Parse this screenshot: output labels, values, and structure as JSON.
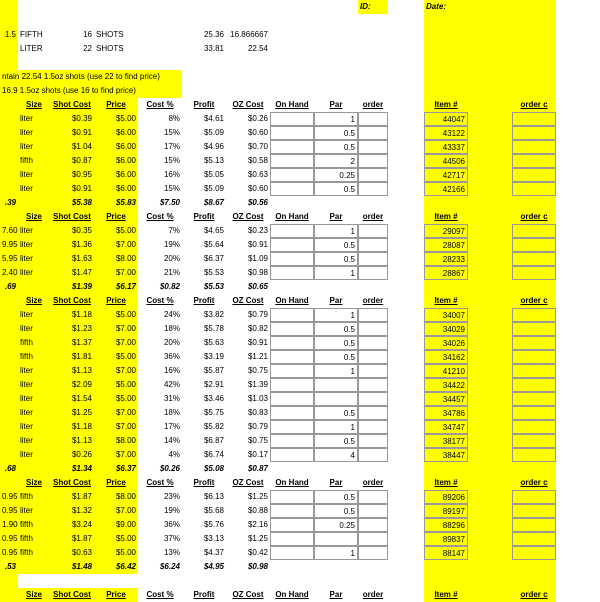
{
  "topLabels": {
    "id": "ID:",
    "date": "Date:"
  },
  "topRows": [
    {
      "a": "1.5",
      "b": "FIFTH",
      "c": "16",
      "d": "SHOTS",
      "e": "25.36",
      "f": "16.866667"
    },
    {
      "a": "",
      "b": "LITER",
      "c": "22",
      "d": "SHOTS",
      "e": "33.81",
      "f": "22.54"
    }
  ],
  "notes": [
    "ntain 22.54 1.5oz shots (use 22 to find price)",
    "16.9 1.5oz shots (use 16 to find price)"
  ],
  "headers": {
    "size": "Size",
    "shotCost": "Shot Cost",
    "price": "Price",
    "costPct": "Cost %",
    "profit": "Profit",
    "ozCost": "OZ Cost",
    "onHand": "On Hand",
    "par": "Par",
    "order": "order",
    "item": "Item #",
    "orderC": "order c"
  },
  "sections": [
    {
      "rows": [
        {
          "size": "liter",
          "shot": "$0.39",
          "price": "$5.00",
          "pct": "8%",
          "profit": "$4.61",
          "oz": "$0.26",
          "hand": "",
          "par": "1",
          "item": "44047"
        },
        {
          "size": "liter",
          "shot": "$0.91",
          "price": "$6.00",
          "pct": "15%",
          "profit": "$5.09",
          "oz": "$0.60",
          "hand": "",
          "par": "0.5",
          "item": "43122"
        },
        {
          "size": "liter",
          "shot": "$1.04",
          "price": "$6.00",
          "pct": "17%",
          "profit": "$4.96",
          "oz": "$0.70",
          "hand": "",
          "par": "0.5",
          "item": "43337"
        },
        {
          "size": "fifth",
          "shot": "$0.87",
          "price": "$6.00",
          "pct": "15%",
          "profit": "$5.13",
          "oz": "$0.58",
          "hand": "",
          "par": "2",
          "item": "44506"
        },
        {
          "size": "liter",
          "shot": "$0.95",
          "price": "$6.00",
          "pct": "16%",
          "profit": "$5.05",
          "oz": "$0.63",
          "hand": "",
          "par": "0.25",
          "item": "42717"
        },
        {
          "size": "liter",
          "shot": "$0.91",
          "price": "$6.00",
          "pct": "15%",
          "profit": "$5.09",
          "oz": "$0.60",
          "hand": "",
          "par": "0.5",
          "item": "42166"
        }
      ],
      "totals": {
        "left": ".39",
        "shot": "$5.38",
        "price": "$5.83",
        "pct": "$7.50",
        "profit": "$8.67",
        "oz": "$0.56"
      }
    },
    {
      "rows": [
        {
          "pre": "7.60",
          "size": "liter",
          "shot": "$0.35",
          "price": "$5.00",
          "pct": "7%",
          "profit": "$4.65",
          "oz": "$0.23",
          "hand": "",
          "par": "1",
          "item": "29097"
        },
        {
          "pre": "9.95",
          "size": "liter",
          "shot": "$1.36",
          "price": "$7.00",
          "pct": "19%",
          "profit": "$5.64",
          "oz": "$0.91",
          "hand": "",
          "par": "0.5",
          "item": "28087"
        },
        {
          "pre": "5.95",
          "size": "liter",
          "shot": "$1.63",
          "price": "$8.00",
          "pct": "20%",
          "profit": "$6.37",
          "oz": "$1.09",
          "hand": "",
          "par": "0.5",
          "item": "28233"
        },
        {
          "pre": "2.40",
          "size": "liter",
          "shot": "$1.47",
          "price": "$7.00",
          "pct": "21%",
          "profit": "$5.53",
          "oz": "$0.98",
          "hand": "",
          "par": "1",
          "item": "28867"
        }
      ],
      "totals": {
        "left": ".69",
        "shot": "$1.39",
        "price": "$6.17",
        "pct": "$0.82",
        "profit": "$5.53",
        "oz": "$0.65"
      }
    },
    {
      "rows": [
        {
          "size": "liter",
          "shot": "$1.18",
          "price": "$5.00",
          "pct": "24%",
          "profit": "$3.82",
          "oz": "$0.79",
          "hand": "",
          "par": "1",
          "item": "34007"
        },
        {
          "size": "liter",
          "shot": "$1.23",
          "price": "$7.00",
          "pct": "18%",
          "profit": "$5.78",
          "oz": "$0.82",
          "hand": "",
          "par": "0.5",
          "item": "34029"
        },
        {
          "size": "fifth",
          "shot": "$1.37",
          "price": "$7.00",
          "pct": "20%",
          "profit": "$5.63",
          "oz": "$0.91",
          "hand": "",
          "par": "0.5",
          "item": "34026"
        },
        {
          "size": "fifth",
          "shot": "$1.81",
          "price": "$5.00",
          "pct": "36%",
          "profit": "$3.19",
          "oz": "$1.21",
          "hand": "",
          "par": "0.5",
          "item": "34162"
        },
        {
          "size": "liter",
          "shot": "$1.13",
          "price": "$7.00",
          "pct": "16%",
          "profit": "$5.87",
          "oz": "$0.75",
          "hand": "",
          "par": "1",
          "item": "41210"
        },
        {
          "size": "liter",
          "shot": "$2.09",
          "price": "$5.00",
          "pct": "42%",
          "profit": "$2.91",
          "oz": "$1.39",
          "hand": "",
          "par": "",
          "item": "34422"
        },
        {
          "size": "liter",
          "shot": "$1.54",
          "price": "$5.00",
          "pct": "31%",
          "profit": "$3.46",
          "oz": "$1.03",
          "hand": "",
          "par": "",
          "item": "34457"
        },
        {
          "size": "liter",
          "shot": "$1.25",
          "price": "$7.00",
          "pct": "18%",
          "profit": "$5.75",
          "oz": "$0.83",
          "hand": "",
          "par": "0.5",
          "item": "34786"
        },
        {
          "size": "liter",
          "shot": "$1.18",
          "price": "$7.00",
          "pct": "17%",
          "profit": "$5.82",
          "oz": "$0.79",
          "hand": "",
          "par": "1",
          "item": "34747"
        },
        {
          "size": "liter",
          "shot": "$1.13",
          "price": "$8.00",
          "pct": "14%",
          "profit": "$6.87",
          "oz": "$0.75",
          "hand": "",
          "par": "0.5",
          "item": "38177"
        },
        {
          "size": "liter",
          "shot": "$0.26",
          "price": "$7.00",
          "pct": "4%",
          "profit": "$6.74",
          "oz": "$0.17",
          "hand": "",
          "par": "4",
          "item": "38447"
        }
      ],
      "totals": {
        "left": ".68",
        "shot": "$1.34",
        "price": "$6.37",
        "pct": "$0.26",
        "profit": "$5.08",
        "oz": "$0.87"
      }
    },
    {
      "rows": [
        {
          "pre": "0.95",
          "size": "fifth",
          "shot": "$1.87",
          "price": "$8.00",
          "pct": "23%",
          "profit": "$6.13",
          "oz": "$1.25",
          "hand": "",
          "par": "0.5",
          "item": "89206"
        },
        {
          "pre": "0.95",
          "size": "liter",
          "shot": "$1.32",
          "price": "$7.00",
          "pct": "19%",
          "profit": "$5.68",
          "oz": "$0.88",
          "hand": "",
          "par": "0.5",
          "item": "89197"
        },
        {
          "pre": "1.90",
          "size": "fifth",
          "shot": "$3.24",
          "price": "$9.00",
          "pct": "36%",
          "profit": "$5.76",
          "oz": "$2.16",
          "hand": "",
          "par": "0.25",
          "item": "88296"
        },
        {
          "pre": "0.95",
          "size": "fifth",
          "shot": "$1.87",
          "price": "$5.00",
          "pct": "37%",
          "profit": "$3.13",
          "oz": "$1.25",
          "hand": "",
          "par": "",
          "item": "89837"
        },
        {
          "pre": "0.95",
          "size": "fifth",
          "shot": "$0.63",
          "price": "$5.00",
          "pct": "13%",
          "profit": "$4.37",
          "oz": "$0.42",
          "hand": "",
          "par": "1",
          "item": "88147"
        }
      ],
      "totals": {
        "left": ".53",
        "shot": "$1.48",
        "price": "$6.42",
        "pct": "$6.24",
        "profit": "$4.95",
        "oz": "$0.98"
      }
    }
  ]
}
